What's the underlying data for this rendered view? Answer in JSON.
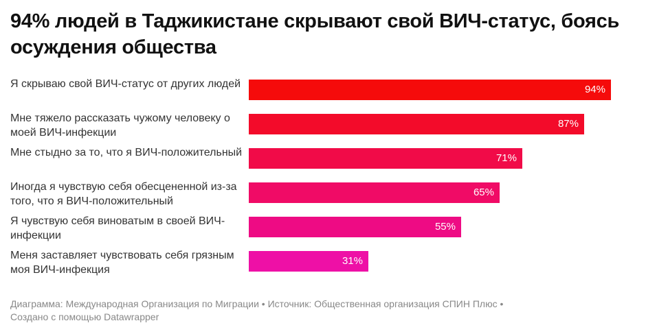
{
  "title": "94% людей в Таджикистане скрывают свой ВИЧ-статус, боясь осуждения общества",
  "chart_data": {
    "type": "bar",
    "orientation": "horizontal",
    "title": "94% людей в Таджикистане скрывают свой ВИЧ-статус, боясь осуждения общества",
    "xlim": [
      0,
      100
    ],
    "unit": "%",
    "categories": [
      "Я скрываю свой ВИЧ-статус от других людей",
      "Мне тяжело рассказать чужому человеку о моей ВИЧ-инфекции",
      "Мне стыдно за то, что я ВИЧ-положительный",
      "Иногда я чувствую себя обесцененной из-за того, что я ВИЧ-положительный",
      "Я чувствую себя виноватым в своей ВИЧ-инфекции",
      "Меня заставляет чувствовать себя грязным моя ВИЧ-инфекция"
    ],
    "values": [
      94,
      87,
      71,
      65,
      55,
      31
    ],
    "value_labels": [
      "94%",
      "87%",
      "71%",
      "65%",
      "55%",
      "31%"
    ],
    "colors": [
      "#f50b0b",
      "#f30b2a",
      "#f10b48",
      "#f00b66",
      "#ee0b84",
      "#ee10a6"
    ]
  },
  "footer": {
    "line1": "Диаграмма: Международная Организация по Миграции • Источник: Общественная организация СПИН Плюс •",
    "line2": "Создано с помощью Datawrapper"
  }
}
